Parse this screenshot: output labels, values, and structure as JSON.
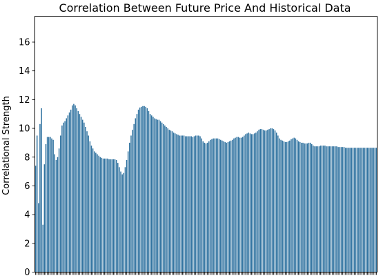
{
  "chart_data": {
    "type": "bar",
    "title": "Correlation Between Future Price And Historical Data",
    "xlabel": "",
    "ylabel": "Correlational Strength",
    "ylim": [
      0,
      17.8
    ],
    "yticks": [
      0,
      2,
      4,
      6,
      8,
      10,
      12,
      14,
      16
    ],
    "grid": false,
    "legend": "none",
    "bar_color": "#3274a1",
    "values": [
      7.4,
      9.5,
      4.8,
      10.3,
      11.4,
      3.3,
      7.5,
      8.9,
      9.4,
      9.4,
      9.4,
      9.3,
      9.2,
      8.2,
      7.8,
      8.0,
      8.6,
      9.5,
      10.2,
      10.4,
      10.5,
      10.7,
      10.9,
      11.1,
      11.3,
      11.6,
      11.7,
      11.6,
      11.4,
      11.2,
      11.0,
      10.8,
      10.6,
      10.4,
      10.1,
      9.8,
      9.5,
      9.1,
      8.8,
      8.6,
      8.4,
      8.3,
      8.2,
      8.1,
      8.0,
      7.95,
      7.9,
      7.9,
      7.9,
      7.9,
      7.85,
      7.85,
      7.85,
      7.85,
      7.85,
      7.8,
      7.6,
      7.3,
      7.0,
      6.8,
      6.9,
      7.3,
      7.8,
      8.4,
      9.0,
      9.5,
      9.9,
      10.3,
      10.7,
      11.0,
      11.3,
      11.45,
      11.5,
      11.55,
      11.55,
      11.5,
      11.4,
      11.2,
      11.0,
      10.9,
      10.8,
      10.7,
      10.65,
      10.6,
      10.6,
      10.5,
      10.4,
      10.3,
      10.2,
      10.1,
      10.0,
      9.9,
      9.85,
      9.8,
      9.7,
      9.65,
      9.6,
      9.55,
      9.5,
      9.5,
      9.5,
      9.5,
      9.45,
      9.45,
      9.45,
      9.45,
      9.45,
      9.4,
      9.45,
      9.5,
      9.5,
      9.5,
      9.45,
      9.3,
      9.1,
      9.0,
      8.95,
      9.0,
      9.1,
      9.2,
      9.25,
      9.3,
      9.3,
      9.3,
      9.3,
      9.25,
      9.2,
      9.15,
      9.1,
      9.05,
      9.0,
      9.05,
      9.1,
      9.15,
      9.2,
      9.3,
      9.35,
      9.4,
      9.4,
      9.35,
      9.35,
      9.4,
      9.5,
      9.6,
      9.65,
      9.7,
      9.65,
      9.6,
      9.6,
      9.65,
      9.7,
      9.8,
      9.9,
      9.95,
      9.95,
      9.9,
      9.85,
      9.85,
      9.9,
      9.95,
      10.0,
      10.0,
      9.95,
      9.85,
      9.7,
      9.5,
      9.3,
      9.2,
      9.15,
      9.1,
      9.05,
      9.05,
      9.1,
      9.15,
      9.25,
      9.3,
      9.35,
      9.3,
      9.2,
      9.1,
      9.05,
      9.0,
      9.0,
      8.95,
      8.95,
      8.95,
      9.0,
      9.0,
      8.9,
      8.8,
      8.75,
      8.75,
      8.75,
      8.75,
      8.8,
      8.8,
      8.8,
      8.8,
      8.75,
      8.75,
      8.75,
      8.75,
      8.75,
      8.75,
      8.75,
      8.75,
      8.7,
      8.7,
      8.7,
      8.7,
      8.7,
      8.65,
      8.65,
      8.65,
      8.65,
      8.65,
      8.65,
      8.65,
      8.65,
      8.65,
      8.65,
      8.65,
      8.65,
      8.65,
      8.65,
      8.65,
      8.65,
      8.65,
      8.65,
      8.65,
      8.65,
      8.65,
      8.65
    ]
  }
}
